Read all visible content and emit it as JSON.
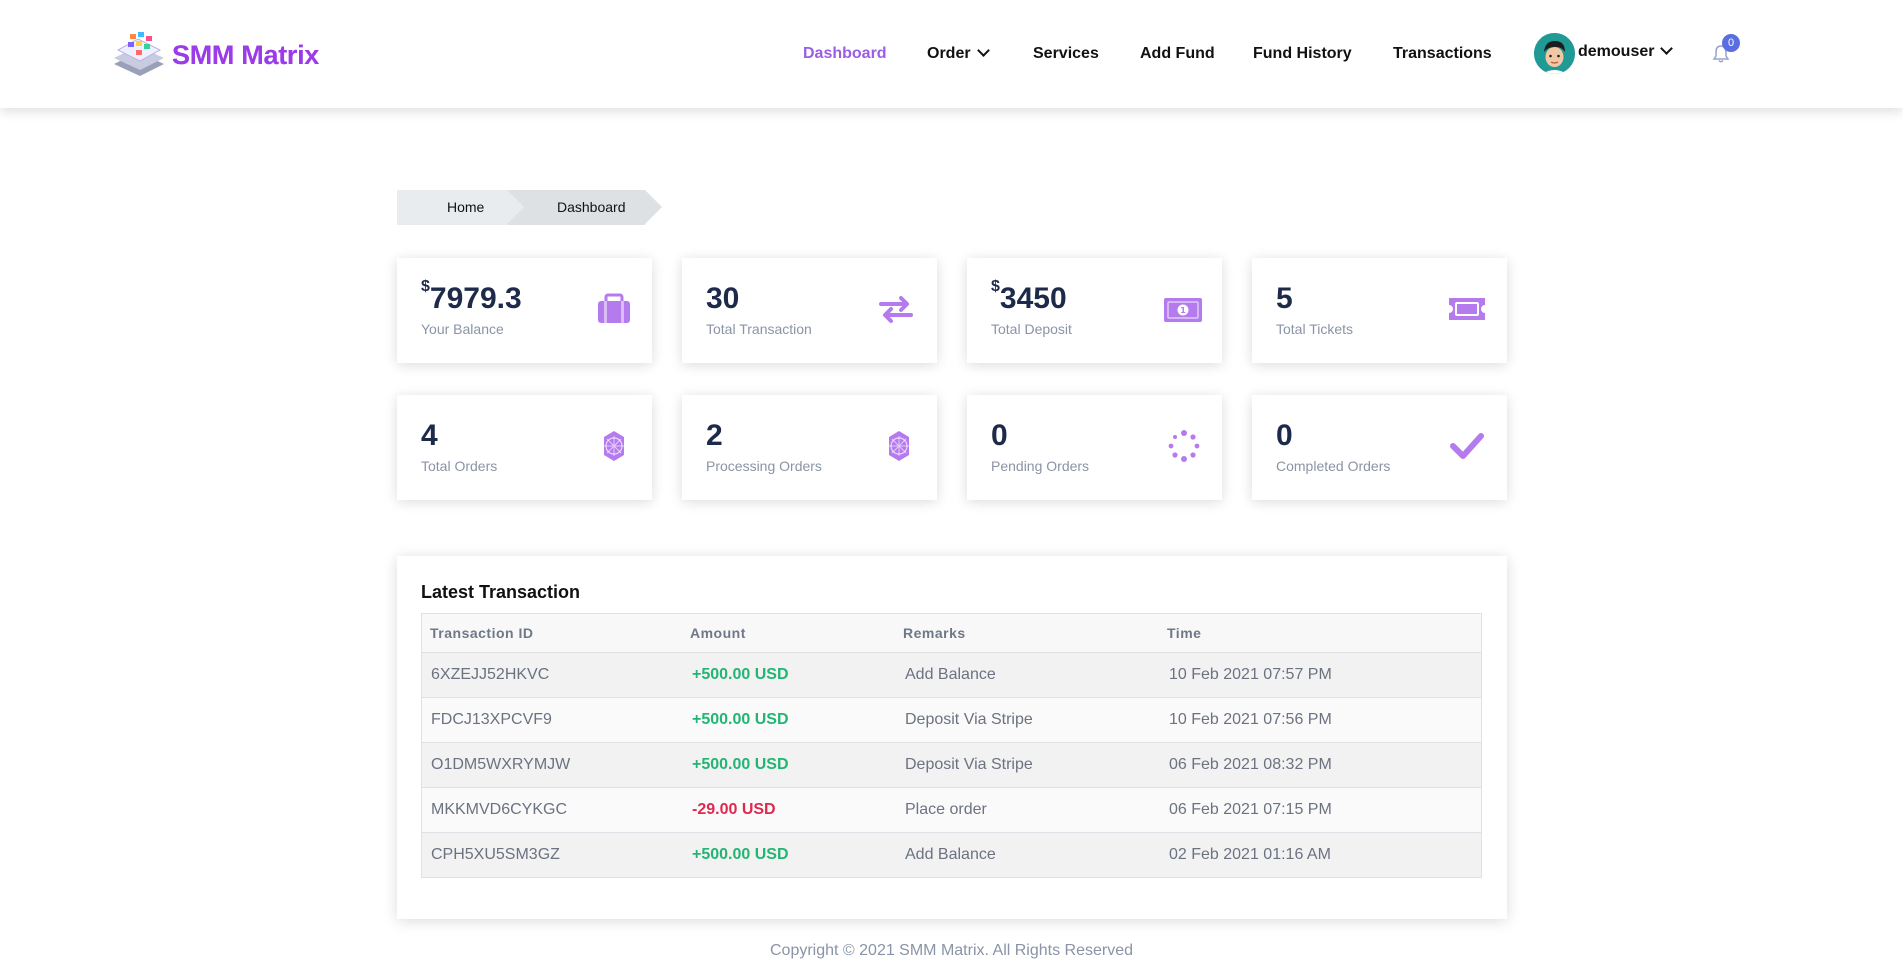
{
  "brand": {
    "name": "SMM Matrix",
    "accent": "#9b5de5"
  },
  "nav": {
    "dashboard": "Dashboard",
    "order": "Order",
    "services": "Services",
    "add_fund": "Add Fund",
    "fund_history": "Fund History",
    "transactions": "Transactions",
    "username": "demouser",
    "notification_count": "0"
  },
  "breadcrumb": {
    "home": "Home",
    "current": "Dashboard"
  },
  "stats": [
    {
      "currency": "$",
      "value": "7979.3",
      "label": "Your Balance",
      "icon": "briefcase-icon"
    },
    {
      "currency": "",
      "value": "30",
      "label": "Total Transaction",
      "icon": "exchange-icon"
    },
    {
      "currency": "$",
      "value": "3450",
      "label": "Total Deposit",
      "icon": "money-bill-icon"
    },
    {
      "currency": "",
      "value": "5",
      "label": "Total Tickets",
      "icon": "ticket-icon"
    },
    {
      "currency": "",
      "value": "4",
      "label": "Total Orders",
      "icon": "jedi-order-icon"
    },
    {
      "currency": "",
      "value": "2",
      "label": "Processing Orders",
      "icon": "jedi-order-icon"
    },
    {
      "currency": "",
      "value": "0",
      "label": "Pending Orders",
      "icon": "spinner-icon"
    },
    {
      "currency": "",
      "value": "0",
      "label": "Completed Orders",
      "icon": "check-icon"
    }
  ],
  "transactions": {
    "title": "Latest Transaction",
    "headers": [
      "Transaction ID",
      "Amount",
      "Remarks",
      "Time"
    ],
    "rows": [
      {
        "id": "6XZEJJ52HKVC",
        "amount": "+500.00 USD",
        "remarks": "Add Balance",
        "time": "10 Feb 2021 07:57 PM"
      },
      {
        "id": "FDCJ13XPCVF9",
        "amount": "+500.00 USD",
        "remarks": "Deposit Via Stripe",
        "time": "10 Feb 2021 07:56 PM"
      },
      {
        "id": "O1DM5WXRYMJW",
        "amount": "+500.00 USD",
        "remarks": "Deposit Via Stripe",
        "time": "06 Feb 2021 08:32 PM"
      },
      {
        "id": "MKKMVD6CYKGC",
        "amount": "-29.00 USD",
        "remarks": "Place order",
        "time": "06 Feb 2021 07:15 PM"
      },
      {
        "id": "CPH5XU5SM3GZ",
        "amount": "+500.00 USD",
        "remarks": "Add Balance",
        "time": "02 Feb 2021 01:16 AM"
      }
    ]
  },
  "footer": {
    "text": "Copyright © 2021 SMM Matrix. All Rights Reserved"
  },
  "colors": {
    "positive": "#22b573",
    "negative": "#e0284f",
    "icon": "#b57bee"
  }
}
